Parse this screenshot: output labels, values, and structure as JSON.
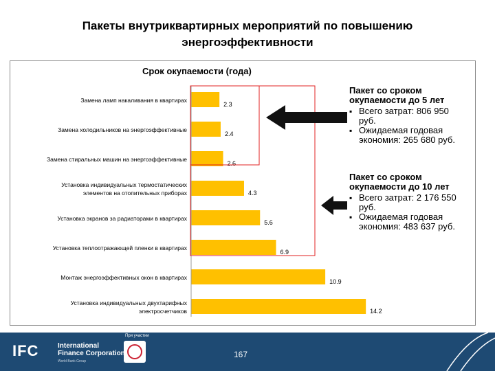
{
  "slide": {
    "title_line1": "Пакеты внутриквартирных мероприятий по повышению",
    "title_line2": "энергоэффективности",
    "page_number": "167"
  },
  "chart_data": {
    "type": "bar",
    "orientation": "horizontal",
    "title": "Срок окупаемости (года)",
    "categories": [
      "Замена ламп накаливания в квартирах",
      "Замена холодильников на энергоэффективные",
      "Замена стиральных машин на энергоэффективные",
      "Установка индивидуальных термостатических элементов на отопительных приборах",
      "Установка экранов за радиаторами в квартирах",
      "Установка теплоотражающей пленки в квартирах",
      "Монтаж энергоэффективных окон в квартирах",
      "Установка индивидуальных двухтарифных электросчетчиков"
    ],
    "category_lines": [
      [
        "Замена ламп накаливания в квартирах"
      ],
      [
        "Замена холодильников на энергоэффективные"
      ],
      [
        "Замена стиральных машин на энергоэффективные"
      ],
      [
        "Установка индивидуальных термостатических",
        "элементов на отопительных приборах"
      ],
      [
        "Установка экранов за радиаторами в квартирах"
      ],
      [
        "Установка теплоотражающей пленки в квартирах"
      ],
      [
        "Монтаж энергоэффективных окон в квартирах"
      ],
      [
        "Установка индивидуальных двухтарифных",
        "электросчетчиков"
      ]
    ],
    "values": [
      2.3,
      2.4,
      2.6,
      4.3,
      5.6,
      6.9,
      10.9,
      14.2
    ],
    "value_labels": [
      "2.3",
      "2.4",
      "2.6",
      "4.3",
      "5.6",
      "6.9",
      "10.9",
      "14.2"
    ],
    "xlim": [
      0,
      15
    ],
    "grid": false,
    "bar_color": "#ffc000",
    "highlight_color": "#e02020"
  },
  "packages": [
    {
      "head_line1": "Пакет со сроком",
      "head_line2": "окупаемости до 5 лет",
      "bullets": [
        [
          "Всего затрат: 806 950",
          "руб."
        ],
        [
          "Ожидаемая годовая",
          "экономия: 265 680 руб."
        ]
      ]
    },
    {
      "head_line1": "Пакет со сроком",
      "head_line2": "окупаемости до 10 лет",
      "bullets": [
        [
          "Всего затрат: 2 176 550",
          "руб."
        ],
        [
          "Ожидаемая годовая",
          "экономия: 483 637 руб."
        ]
      ]
    }
  ],
  "footer": {
    "logo_text": "IFC",
    "org_line1": "International",
    "org_line2": "Finance Corporation",
    "org_line3": "World Bank Group",
    "partner_label": "При участии"
  }
}
